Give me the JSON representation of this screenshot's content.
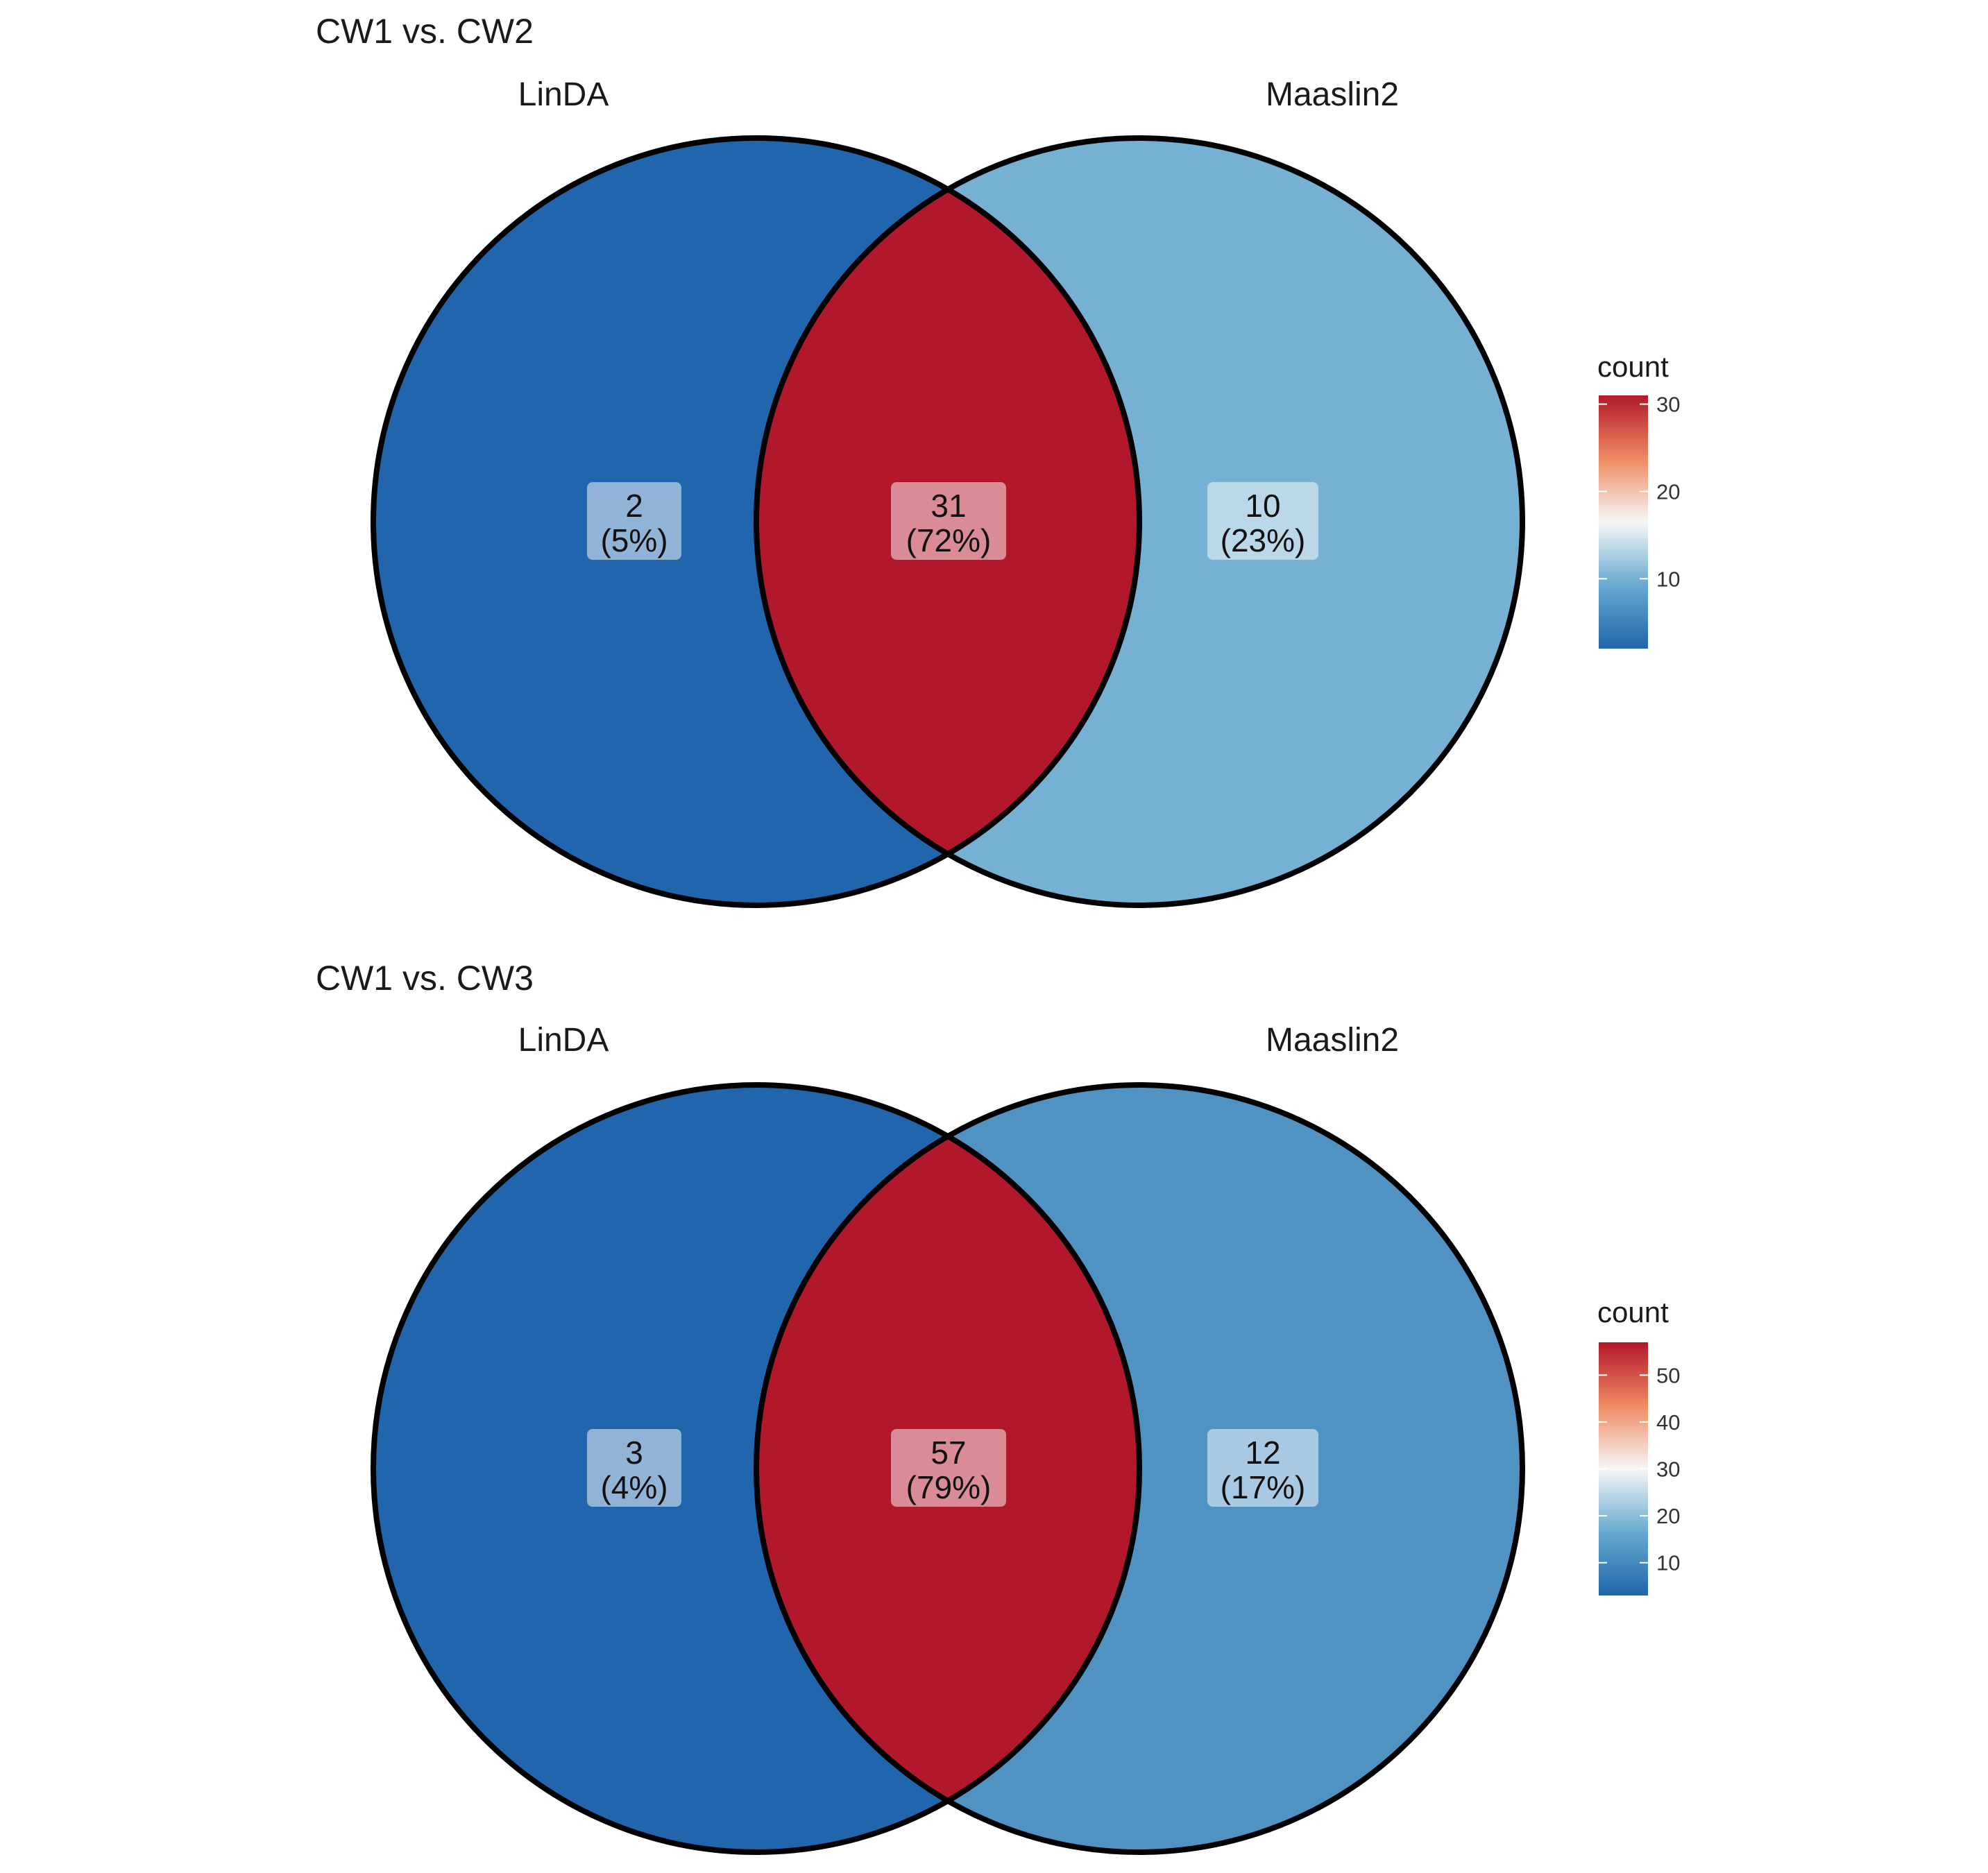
{
  "chart_data": [
    {
      "type": "venn",
      "title": "CW1 vs. CW2",
      "sets": [
        "LinDA",
        "Maaslin2"
      ],
      "regions": [
        {
          "name": "LinDA only",
          "count": 2,
          "percent": "(5%)"
        },
        {
          "name": "LinDA ∩ Maaslin2",
          "count": 31,
          "percent": "(72%)"
        },
        {
          "name": "Maaslin2 only",
          "count": 10,
          "percent": "(23%)"
        }
      ],
      "legend": {
        "title": "count",
        "ticks": [
          10,
          20,
          30
        ],
        "range": [
          2,
          31
        ],
        "placement": "right"
      }
    },
    {
      "type": "venn",
      "title": "CW1 vs. CW3",
      "sets": [
        "LinDA",
        "Maaslin2"
      ],
      "regions": [
        {
          "name": "LinDA only",
          "count": 3,
          "percent": "(4%)"
        },
        {
          "name": "LinDA ∩ Maaslin2",
          "count": 57,
          "percent": "(79%)"
        },
        {
          "name": "Maaslin2 only",
          "count": 12,
          "percent": "(17%)"
        }
      ],
      "legend": {
        "title": "count",
        "ticks": [
          10,
          20,
          30,
          40,
          50
        ],
        "range": [
          3,
          57
        ],
        "placement": "right"
      }
    }
  ],
  "colors": {
    "low": "#2166ac",
    "mid_low": "#67a9cf",
    "mid": "#f7f7f7",
    "mid_high": "#ef8a62",
    "high": "#b2182b",
    "outline": "#000000"
  }
}
